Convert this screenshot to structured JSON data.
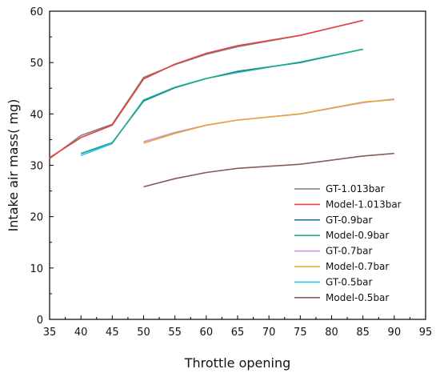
{
  "chart_data": {
    "type": "line",
    "title": "",
    "xlabel": "Throttle opening",
    "ylabel": "Intake air mass( mg)",
    "xlim": [
      35,
      95
    ],
    "ylim": [
      0,
      60
    ],
    "xticks": [
      35,
      40,
      45,
      50,
      55,
      60,
      65,
      70,
      75,
      80,
      85,
      90,
      95
    ],
    "yticks": [
      0,
      10,
      20,
      30,
      40,
      50,
      60
    ],
    "grid": false,
    "legend_position": "bottom-right",
    "series": [
      {
        "name": "GT-1.013bar",
        "color": "#7f7f7f",
        "x": [
          35,
          40,
          45,
          50,
          55,
          60,
          65,
          75,
          85
        ],
        "y": [
          31.3,
          35.8,
          38.0,
          47.1,
          49.6,
          51.6,
          53.1,
          55.3,
          58.2
        ]
      },
      {
        "name": "Model-1.013bar",
        "color": "#e8413a",
        "x": [
          35,
          40,
          45,
          50,
          55,
          60,
          65,
          75,
          85
        ],
        "y": [
          31.5,
          35.4,
          37.8,
          46.8,
          49.7,
          51.8,
          53.3,
          55.3,
          58.2
        ]
      },
      {
        "name": "GT-0.9bar",
        "color": "#1f77b4",
        "x": [
          40,
          45,
          50,
          55,
          60,
          65,
          75,
          85
        ],
        "y": [
          32.3,
          34.4,
          42.5,
          45.1,
          46.9,
          48.3,
          50.0,
          52.6
        ]
      },
      {
        "name": "Model-0.9bar",
        "color": "#1aaf8b",
        "x": [
          40,
          45,
          50,
          55,
          60,
          65,
          75,
          85
        ],
        "y": [
          32.3,
          34.3,
          42.7,
          45.2,
          46.9,
          48.1,
          50.1,
          52.6
        ]
      },
      {
        "name": "GT-0.7bar",
        "color": "#c49ae6",
        "x": [
          50,
          55,
          60,
          65,
          75,
          85,
          90
        ],
        "y": [
          34.6,
          36.4,
          37.8,
          38.8,
          40.0,
          42.2,
          42.9
        ]
      },
      {
        "name": "Model-0.7bar",
        "color": "#e8a23a",
        "x": [
          50,
          55,
          60,
          65,
          75,
          85,
          90
        ],
        "y": [
          34.3,
          36.2,
          37.8,
          38.8,
          40.0,
          42.3,
          42.8
        ]
      },
      {
        "name": "GT-0.5bar",
        "color": "#2ec5e6",
        "x": [
          40,
          45
        ],
        "y": [
          31.9,
          34.2
        ]
      },
      {
        "name": "Model-0.5bar",
        "color": "#8b5a55",
        "x": [
          50,
          55,
          60,
          65,
          75,
          85,
          90
        ],
        "y": [
          25.8,
          27.4,
          28.6,
          29.4,
          30.2,
          31.8,
          32.3
        ]
      }
    ]
  }
}
